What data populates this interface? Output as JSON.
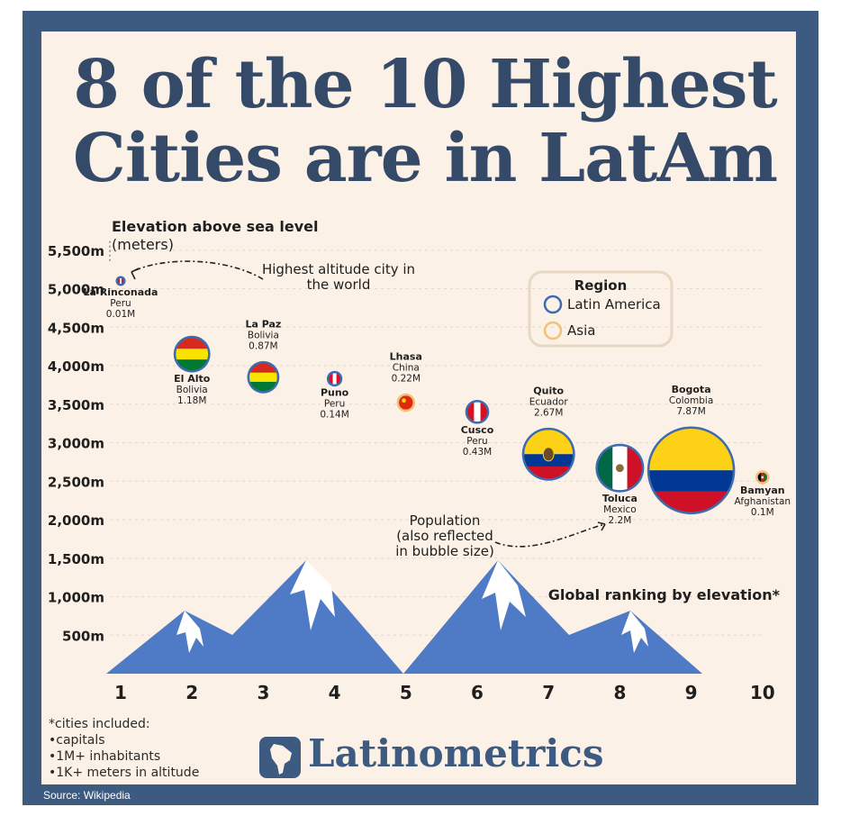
{
  "title": {
    "line1": "8 of the 10 Highest",
    "line2": "Cities are in LatAm"
  },
  "chart_data": {
    "type": "scatter",
    "ylabel": "Elevation above sea level",
    "ylabel_unit": "(meters)",
    "xlabel": "Global ranking by elevation*",
    "ylim": [
      0,
      5500
    ],
    "xlim": [
      1,
      10
    ],
    "y_ticks": [
      "500m",
      "1,000m",
      "1,500m",
      "2,000m",
      "2,500m",
      "3,000m",
      "3,500m",
      "4,000m",
      "4,500m",
      "5,000m",
      "5,500m"
    ],
    "x_ticks": [
      "1",
      "2",
      "3",
      "4",
      "5",
      "6",
      "7",
      "8",
      "9",
      "10"
    ],
    "points": [
      {
        "rank": 1,
        "city": "La Rinconada",
        "country": "Peru",
        "population": "0.01M",
        "pop_m": 0.01,
        "elevation": 5100,
        "region": "Latin America",
        "flag": "peru"
      },
      {
        "rank": 2,
        "city": "El Alto",
        "country": "Bolivia",
        "population": "1.18M",
        "pop_m": 1.18,
        "elevation": 4150,
        "region": "Latin America",
        "flag": "bolivia"
      },
      {
        "rank": 3,
        "city": "La Paz",
        "country": "Bolivia",
        "population": "0.87M",
        "pop_m": 0.87,
        "elevation": 3850,
        "region": "Latin America",
        "flag": "bolivia"
      },
      {
        "rank": 4,
        "city": "Puno",
        "country": "Peru",
        "population": "0.14M",
        "pop_m": 0.14,
        "elevation": 3830,
        "region": "Latin America",
        "flag": "peru"
      },
      {
        "rank": 5,
        "city": "Lhasa",
        "country": "China",
        "population": "0.22M",
        "pop_m": 0.22,
        "elevation": 3520,
        "region": "Asia",
        "flag": "china"
      },
      {
        "rank": 6,
        "city": "Cusco",
        "country": "Peru",
        "population": "0.43M",
        "pop_m": 0.43,
        "elevation": 3400,
        "region": "Latin America",
        "flag": "peru"
      },
      {
        "rank": 7,
        "city": "Quito",
        "country": "Ecuador",
        "population": "2.67M",
        "pop_m": 2.67,
        "elevation": 2850,
        "region": "Latin America",
        "flag": "ecuador"
      },
      {
        "rank": 8,
        "city": "Toluca",
        "country": "Mexico",
        "population": "2.2M",
        "pop_m": 2.2,
        "elevation": 2670,
        "region": "Latin America",
        "flag": "mexico"
      },
      {
        "rank": 9,
        "city": "Bogota",
        "country": "Colombia",
        "population": "7.87M",
        "pop_m": 7.87,
        "elevation": 2640,
        "region": "Latin America",
        "flag": "colombia"
      },
      {
        "rank": 10,
        "city": "Bamyan",
        "country": "Afghanistan",
        "population": "0.1M",
        "pop_m": 0.1,
        "elevation": 2550,
        "region": "Asia",
        "flag": "afghanistan"
      }
    ],
    "legend": {
      "title": "Region",
      "placement": "top-right",
      "items": [
        {
          "label": "Latin America",
          "color": "#3d6bb0"
        },
        {
          "label": "Asia",
          "color": "#f2c078"
        }
      ]
    },
    "annotations": {
      "highest": [
        "Highest altitude city in",
        "the world"
      ],
      "population": [
        "Population",
        "(also reflected",
        "in bubble size)"
      ]
    },
    "colors": {
      "latam": "#3d6bb0",
      "asia": "#f2c078",
      "mountain": "#4f7bc6",
      "text": "#1f1f1f"
    }
  },
  "footnote": {
    "lines": [
      "*cities included:",
      "•capitals",
      "•1M+ inhabitants",
      "•1K+ meters in altitude"
    ]
  },
  "brand": {
    "name": "Latinometrics"
  },
  "source": "Source: Wikipedia"
}
